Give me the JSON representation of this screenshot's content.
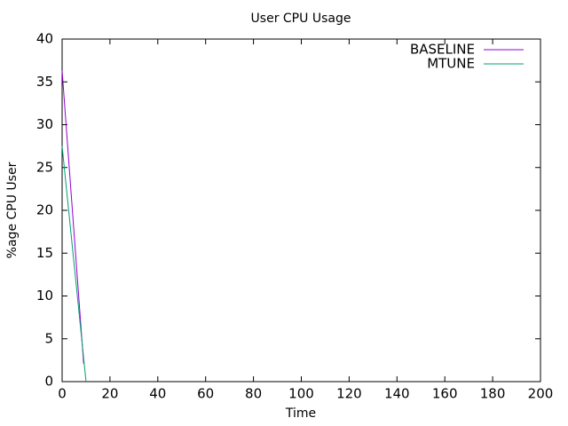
{
  "chart_data": {
    "type": "line",
    "title": "User CPU Usage",
    "x_label": "Time",
    "y_label": "%age CPU User",
    "x": [
      0,
      1,
      2,
      3,
      4,
      5,
      6,
      7,
      8,
      9,
      10
    ],
    "series": [
      {
        "name": "BASELINE",
        "color": "#9400d3",
        "values": [
          36.3,
          32.5,
          28.7,
          24.9,
          21.1,
          17.3,
          13.5,
          9.7,
          5.9,
          2.1,
          null
        ]
      },
      {
        "name": "MTUNE",
        "color": "#009e73",
        "values": [
          27.5,
          24.75,
          22,
          19.25,
          16.5,
          13.75,
          11,
          8.25,
          5.5,
          2.75,
          0
        ]
      }
    ],
    "xlim": [
      0,
      200
    ],
    "xticks": [
      0,
      20,
      40,
      60,
      80,
      100,
      120,
      140,
      160,
      180,
      200
    ],
    "ylim": [
      0,
      40
    ],
    "yticks": [
      0,
      5,
      10,
      15,
      20,
      25,
      30,
      35,
      40
    ],
    "legend": "top-right"
  }
}
